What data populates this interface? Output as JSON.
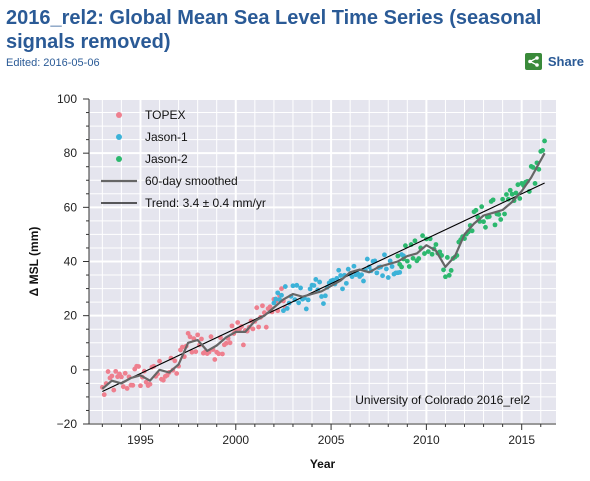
{
  "header": {
    "title": "2016_rel2: Global Mean Sea Level Time Series (seasonal signals removed)",
    "edited": "Edited: 2016-05-06",
    "share_label": "Share",
    "share_icon": "share-icon"
  },
  "chart_data": {
    "type": "scatter",
    "xlabel": "Year",
    "ylabel": "Δ MSL (mm)",
    "xlim": [
      1992.3,
      2016.8
    ],
    "ylim": [
      -20,
      100
    ],
    "x_ticks": [
      1995,
      2000,
      2005,
      2010,
      2015
    ],
    "y_ticks": [
      -20,
      0,
      20,
      40,
      60,
      80,
      100
    ],
    "grid": true,
    "legend_position": "top-left",
    "annotation": "University of Colorado 2016_rel2",
    "series": [
      {
        "name": "TOPEX",
        "type": "scatter",
        "color": "#ee7f8e",
        "x_start": 1993.0,
        "x_end": 2002.6,
        "points": [
          [
            1993.0,
            -8
          ],
          [
            1993.5,
            -4
          ],
          [
            1994.0,
            -5
          ],
          [
            1994.5,
            -3
          ],
          [
            1995.0,
            -2
          ],
          [
            1995.5,
            -4
          ],
          [
            1996.0,
            0
          ],
          [
            1996.5,
            -1
          ],
          [
            1997.0,
            2
          ],
          [
            1997.5,
            10
          ],
          [
            1998.0,
            11
          ],
          [
            1998.5,
            7
          ],
          [
            1999.0,
            9
          ],
          [
            1999.5,
            12
          ],
          [
            2000.0,
            14
          ],
          [
            2000.5,
            14
          ],
          [
            2001.0,
            18
          ],
          [
            2001.5,
            20
          ],
          [
            2002.0,
            23
          ],
          [
            2002.6,
            26
          ]
        ]
      },
      {
        "name": "Jason-1",
        "type": "scatter",
        "color": "#3cb2d8",
        "x_start": 2002.0,
        "x_end": 2008.8,
        "points": [
          [
            2002.0,
            24
          ],
          [
            2002.5,
            26
          ],
          [
            2003.0,
            28
          ],
          [
            2003.5,
            27
          ],
          [
            2004.0,
            28
          ],
          [
            2004.5,
            29
          ],
          [
            2005.0,
            31
          ],
          [
            2005.5,
            33
          ],
          [
            2006.0,
            36
          ],
          [
            2006.5,
            37
          ],
          [
            2007.0,
            36
          ],
          [
            2007.5,
            38
          ],
          [
            2008.0,
            39
          ],
          [
            2008.8,
            40
          ]
        ]
      },
      {
        "name": "Jason-2",
        "type": "scatter",
        "color": "#2cb86e",
        "x_start": 2008.5,
        "x_end": 2016.2,
        "points": [
          [
            2008.5,
            40
          ],
          [
            2009.0,
            42
          ],
          [
            2009.5,
            43
          ],
          [
            2010.0,
            46
          ],
          [
            2010.5,
            44
          ],
          [
            2011.0,
            38
          ],
          [
            2011.5,
            42
          ],
          [
            2012.0,
            50
          ],
          [
            2012.5,
            54
          ],
          [
            2013.0,
            57
          ],
          [
            2013.5,
            58
          ],
          [
            2014.0,
            59
          ],
          [
            2014.5,
            62
          ],
          [
            2015.0,
            66
          ],
          [
            2015.5,
            71
          ],
          [
            2016.2,
            80
          ]
        ]
      },
      {
        "name": "60-day smoothed",
        "type": "line",
        "color": "#666666",
        "points": [
          [
            1993.0,
            -7
          ],
          [
            1993.5,
            -4
          ],
          [
            1994.0,
            -5
          ],
          [
            1994.5,
            -3
          ],
          [
            1995.0,
            -2
          ],
          [
            1995.5,
            -4
          ],
          [
            1996.0,
            0
          ],
          [
            1996.5,
            -1
          ],
          [
            1997.0,
            2
          ],
          [
            1997.5,
            10
          ],
          [
            1998.0,
            11
          ],
          [
            1998.5,
            7
          ],
          [
            1999.0,
            9
          ],
          [
            1999.5,
            12
          ],
          [
            2000.0,
            14
          ],
          [
            2000.5,
            14
          ],
          [
            2001.0,
            18
          ],
          [
            2001.5,
            20
          ],
          [
            2002.0,
            23
          ],
          [
            2002.5,
            26
          ],
          [
            2003.0,
            28
          ],
          [
            2003.5,
            27
          ],
          [
            2004.0,
            28
          ],
          [
            2004.5,
            29
          ],
          [
            2005.0,
            31
          ],
          [
            2005.5,
            33
          ],
          [
            2006.0,
            36
          ],
          [
            2006.5,
            37
          ],
          [
            2007.0,
            36
          ],
          [
            2007.5,
            38
          ],
          [
            2008.0,
            39
          ],
          [
            2008.5,
            40
          ],
          [
            2009.0,
            42
          ],
          [
            2009.5,
            43
          ],
          [
            2010.0,
            46
          ],
          [
            2010.5,
            44
          ],
          [
            2011.0,
            38
          ],
          [
            2011.5,
            42
          ],
          [
            2012.0,
            50
          ],
          [
            2012.5,
            54
          ],
          [
            2013.0,
            57
          ],
          [
            2013.5,
            58
          ],
          [
            2014.0,
            59
          ],
          [
            2014.5,
            62
          ],
          [
            2015.0,
            66
          ],
          [
            2015.5,
            71
          ],
          [
            2016.2,
            80
          ]
        ]
      },
      {
        "name": "Trend: 3.4 ± 0.4 mm/yr",
        "type": "line",
        "color": "#000000",
        "points": [
          [
            1993.0,
            -8
          ],
          [
            2016.2,
            69
          ]
        ]
      }
    ]
  }
}
